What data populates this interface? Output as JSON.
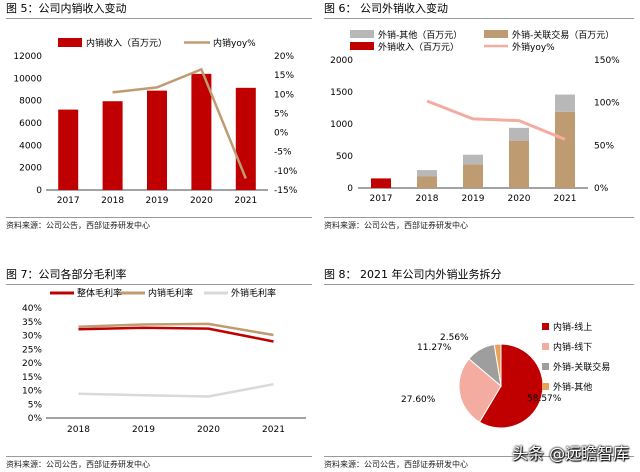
{
  "panels": [
    {
      "title": "图 5：公司内销收入变动",
      "source": "资料来源：公司公告，西部证券研发中心"
    },
    {
      "title": "图 6：   公司外销收入变动",
      "source": "资料来源：公司公告，西部证券研发中心"
    },
    {
      "title": "图 7：公司各部分毛利率",
      "source": "资料来源：公司公告，西部证券研发中心"
    },
    {
      "title": "图 8：   2021 年公司内外销业务拆分",
      "source": "资料来源：公司公告，西部证券研发中心"
    }
  ],
  "watermark": "头条 @远瞻智库",
  "colors": {
    "red": "#c00000",
    "tan": "#bf9b72",
    "gray": "#b8b8b8",
    "pink": "#f4aca0",
    "gray2": "#9e9e9e",
    "orange": "#e8a35a",
    "lightgray": "#d9d9d9"
  },
  "chart_data": [
    {
      "type": "bar",
      "categories": [
        "2017",
        "2018",
        "2019",
        "2020",
        "2021"
      ],
      "series": [
        {
          "name": "内销收入（百万元）",
          "type": "bar",
          "axis": "left",
          "color": "#c00000",
          "values": [
            7200,
            7950,
            8900,
            10400,
            9150
          ]
        },
        {
          "name": "内销yoy%",
          "type": "line",
          "axis": "right",
          "color": "#bf9b72",
          "values": [
            null,
            10.5,
            11.8,
            16.5,
            -12
          ]
        }
      ],
      "y_left": {
        "min": 0,
        "max": 12000,
        "ticks": [
          "0",
          "2000",
          "4000",
          "6000",
          "8000",
          "10000",
          "12000"
        ]
      },
      "y_right": {
        "min": -15,
        "max": 20,
        "ticks": [
          "-15%",
          "-10%",
          "-5%",
          "0%",
          "5%",
          "10%",
          "15%",
          "20%"
        ]
      },
      "legend": "top"
    },
    {
      "type": "bar",
      "categories": [
        "2017",
        "2018",
        "2019",
        "2020",
        "2021"
      ],
      "series": [
        {
          "name": "外销收入（百万元）",
          "type": "bar",
          "axis": "left",
          "color": "#c00000",
          "values": [
            150,
            0,
            0,
            0,
            0
          ]
        },
        {
          "name": "外销-关联交易（百万元）",
          "type": "bar",
          "axis": "left",
          "color": "#bf9b72",
          "values": [
            0,
            180,
            370,
            740,
            1190
          ]
        },
        {
          "name": "外销-其他（百万元）",
          "type": "bar",
          "axis": "left",
          "color": "#b8b8b8",
          "values": [
            0,
            100,
            150,
            200,
            270
          ]
        },
        {
          "name": "外销yoy%",
          "type": "line",
          "axis": "right",
          "color": "#f4aca0",
          "values": [
            null,
            102,
            81,
            79,
            57
          ]
        }
      ],
      "y_left": {
        "min": 0,
        "max": 2000,
        "ticks": [
          "0",
          "500",
          "1000",
          "1500",
          "2000"
        ]
      },
      "y_right": {
        "min": 0,
        "max": 150,
        "ticks": [
          "0%",
          "50%",
          "100%",
          "150%"
        ]
      },
      "legend": "top"
    },
    {
      "type": "line",
      "categories": [
        "2018",
        "2019",
        "2020",
        "2021"
      ],
      "series": [
        {
          "name": "整体毛利率",
          "color": "#c00000",
          "values": [
            32.3,
            32.8,
            32.5,
            27.8
          ]
        },
        {
          "name": "内销毛利率",
          "color": "#bf9b72",
          "values": [
            33.2,
            34.0,
            34.2,
            30.2
          ]
        },
        {
          "name": "外销毛利率",
          "color": "#d9d9d9",
          "values": [
            8.8,
            8.3,
            7.8,
            12.3
          ]
        }
      ],
      "y": {
        "min": 0,
        "max": 40,
        "ticks": [
          "0%",
          "5%",
          "10%",
          "15%",
          "20%",
          "25%",
          "30%",
          "35%",
          "40%"
        ]
      },
      "legend": "top"
    },
    {
      "type": "pie",
      "labels": [
        "内销-线上",
        "内销-线下",
        "外销-关联交易",
        "外销-其他"
      ],
      "values": [
        58.57,
        27.6,
        11.27,
        2.56
      ],
      "value_labels": [
        "58.57%",
        "27.60%",
        "11.27%",
        "2.56%"
      ],
      "colors": [
        "#c00000",
        "#f4aca0",
        "#9e9e9e",
        "#e8a35a"
      ],
      "legend": "right"
    }
  ]
}
